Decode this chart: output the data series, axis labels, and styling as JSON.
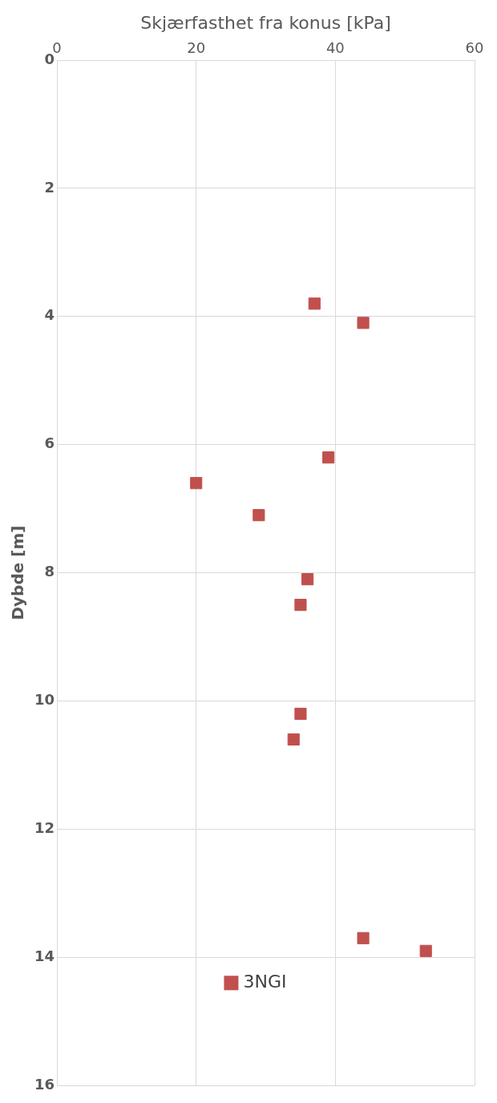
{
  "chart_data": {
    "type": "scatter",
    "xlabel": "Skjærfasthet fra konus [kPa]",
    "ylabel": "Dybde [m]",
    "xlim": [
      0,
      60
    ],
    "xticks": [
      0,
      20,
      40,
      60
    ],
    "ylim": [
      16,
      0
    ],
    "yticks": [
      0,
      2,
      4,
      6,
      8,
      10,
      12,
      14,
      16
    ],
    "grid": true,
    "legend": "bottom left",
    "marker": "square",
    "series": [
      {
        "name": "3NGI",
        "color": "#c0504d",
        "x": [
          37,
          44,
          39,
          20,
          29,
          36,
          35,
          35,
          34,
          44,
          53
        ],
        "values": [
          3.8,
          4.1,
          6.2,
          6.6,
          7.1,
          8.1,
          8.5,
          10.2,
          10.6,
          13.7,
          13.9
        ]
      }
    ]
  }
}
